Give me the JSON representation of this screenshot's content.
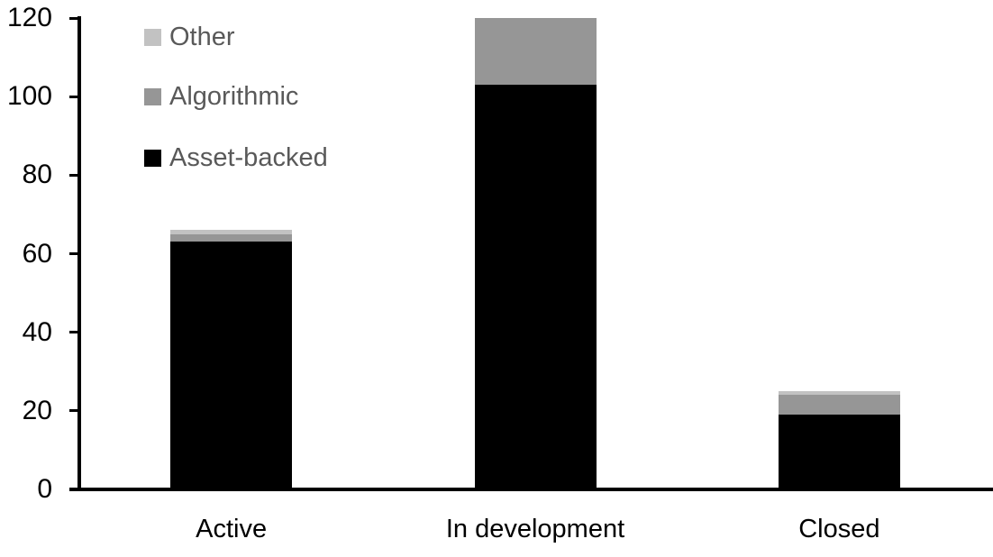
{
  "chart_data": {
    "type": "bar",
    "stacked": true,
    "title": "",
    "xlabel": "",
    "ylabel": "",
    "categories": [
      "Active",
      "In development",
      "Closed"
    ],
    "series": [
      {
        "name": "Asset-backed",
        "color": "#000000",
        "values": [
          63,
          103,
          19
        ]
      },
      {
        "name": "Algorithmic",
        "color": "#969696",
        "values": [
          2,
          17,
          5
        ]
      },
      {
        "name": "Other",
        "color": "#c2c2c2",
        "values": [
          1,
          0,
          1
        ]
      }
    ],
    "totals": [
      66,
      120,
      25
    ],
    "yaxis": {
      "min": 0,
      "max": 120,
      "tick_step": 20,
      "ticks": [
        0,
        20,
        40,
        60,
        80,
        100,
        120
      ]
    },
    "grid": false,
    "legend": {
      "position": "top-left",
      "order": [
        "Other",
        "Algorithmic",
        "Asset-backed"
      ],
      "text_color": "#595959"
    },
    "colors": {
      "axis": "#000000",
      "background": "#ffffff",
      "tick_label": "#000000",
      "x_label": "#000000"
    }
  }
}
